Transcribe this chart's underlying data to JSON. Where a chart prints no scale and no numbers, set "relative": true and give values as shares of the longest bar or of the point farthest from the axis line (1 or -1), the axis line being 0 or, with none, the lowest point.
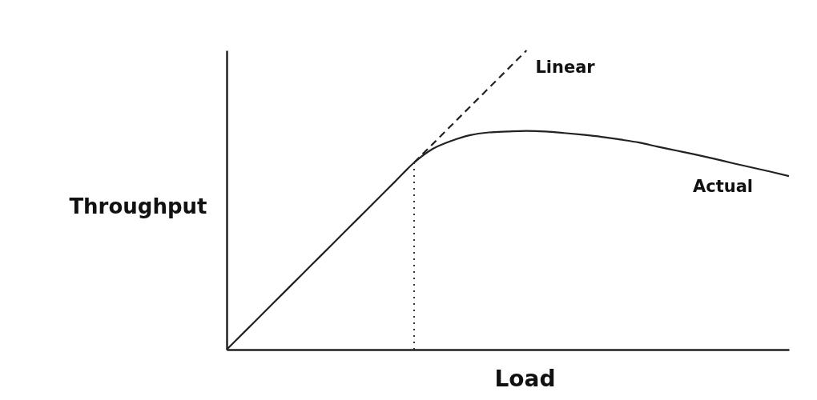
{
  "chart_data": {
    "type": "line",
    "relative": true,
    "xlabel": "Load",
    "ylabel": "Throughput",
    "legend": false,
    "categories": [
      null,
      null,
      null,
      null,
      null,
      null,
      null,
      null,
      null,
      null,
      null,
      null,
      null,
      null,
      null,
      null,
      null,
      null,
      null,
      null,
      null,
      null,
      null,
      null,
      null,
      null,
      null,
      null,
      null,
      null,
      null
    ],
    "series": [
      {
        "name": "Actual",
        "color": "#222222",
        "line_style": "solid",
        "values": [
          0,
          0.0625,
          0.125,
          0.1875,
          0.25,
          0.3125,
          0.375,
          0.4375,
          0.5,
          0.5625,
          0.625,
          0.671,
          0.698,
          0.717,
          0.726,
          0.729,
          0.731,
          0.729,
          0.724,
          0.718,
          0.711,
          0.702,
          0.692,
          0.678,
          0.665,
          0.652,
          0.638,
          0.623,
          0.609,
          0.595,
          0.58
        ]
      },
      {
        "name": "Linear",
        "color": "#222222",
        "line_style": "dashed",
        "values": [
          null,
          null,
          null,
          null,
          null,
          null,
          null,
          null,
          null,
          null,
          0.625,
          0.6875,
          0.75,
          0.8125,
          0.875,
          0.9375,
          1.0,
          null,
          null,
          null,
          null,
          null,
          null,
          null,
          null,
          null,
          null,
          null,
          null,
          null,
          null
        ]
      }
    ]
  }
}
